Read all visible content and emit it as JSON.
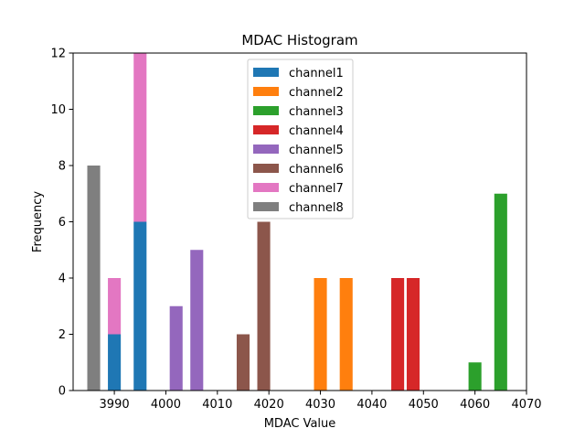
{
  "chart_data": {
    "type": "bar",
    "stacked": true,
    "title": "MDAC Histogram",
    "xlabel": "MDAC Value",
    "ylabel": "Frequency",
    "xlim": [
      3982,
      4070
    ],
    "ylim": [
      0,
      12
    ],
    "xticks": [
      3990,
      4000,
      4010,
      4020,
      4030,
      4040,
      4050,
      4060,
      4070
    ],
    "yticks": [
      0,
      2,
      4,
      6,
      8,
      10,
      12
    ],
    "bar_width": 2.5,
    "legend_position": "top-center",
    "series": [
      {
        "name": "channel1",
        "color": "#1f77b4",
        "bars": [
          {
            "x": 3990,
            "value": 2
          },
          {
            "x": 3995,
            "value": 6
          }
        ]
      },
      {
        "name": "channel2",
        "color": "#ff7f0e",
        "bars": [
          {
            "x": 4030,
            "value": 4
          },
          {
            "x": 4035,
            "value": 4
          }
        ]
      },
      {
        "name": "channel3",
        "color": "#2ca02c",
        "bars": [
          {
            "x": 4060,
            "value": 1
          },
          {
            "x": 4065,
            "value": 7
          }
        ]
      },
      {
        "name": "channel4",
        "color": "#d62728",
        "bars": [
          {
            "x": 4045,
            "value": 4
          },
          {
            "x": 4048,
            "value": 4
          }
        ]
      },
      {
        "name": "channel5",
        "color": "#9467bd",
        "bars": [
          {
            "x": 4002,
            "value": 3
          },
          {
            "x": 4006,
            "value": 5
          }
        ]
      },
      {
        "name": "channel6",
        "color": "#8c564b",
        "bars": [
          {
            "x": 4015,
            "value": 2
          },
          {
            "x": 4019,
            "value": 6
          }
        ]
      },
      {
        "name": "channel7",
        "color": "#e377c2",
        "bars": [
          {
            "x": 3990,
            "value": 2
          },
          {
            "x": 3995,
            "value": 6
          }
        ]
      },
      {
        "name": "channel8",
        "color": "#7f7f7f",
        "bars": [
          {
            "x": 3986,
            "value": 8
          }
        ]
      }
    ]
  }
}
